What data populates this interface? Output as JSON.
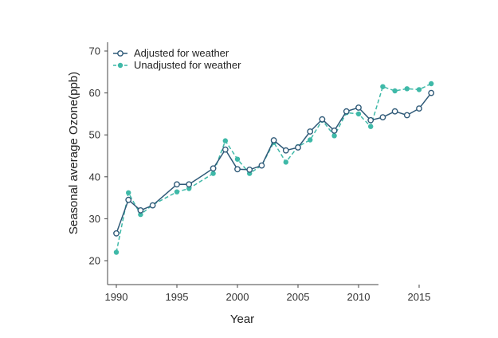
{
  "chart_data": {
    "type": "line",
    "title": "",
    "xlabel": "Year",
    "ylabel": "Seasonal average Ozone(ppb)",
    "xlim": [
      1990,
      2016
    ],
    "ylim": [
      17,
      71
    ],
    "x_ticks": [
      1990,
      1995,
      2000,
      2005,
      2010,
      2015
    ],
    "y_ticks": [
      20,
      30,
      40,
      50,
      60,
      70
    ],
    "grid": false,
    "legend_position": "top-left",
    "series": [
      {
        "name": "Adjusted for weather",
        "color": "#2f5a78",
        "style": "solid",
        "marker": "hollow-circle",
        "points": [
          [
            1990,
            26.5
          ],
          [
            1991,
            34.5
          ],
          [
            1992,
            32
          ],
          [
            1993,
            33.2
          ],
          [
            1995,
            38.2
          ],
          [
            1996,
            38.2
          ],
          [
            1998,
            42
          ],
          [
            1999,
            46.5
          ],
          [
            2000,
            41.8
          ],
          [
            2001,
            41.7
          ],
          [
            2002,
            42.7
          ],
          [
            2003,
            48.7
          ],
          [
            2004,
            46.3
          ],
          [
            2005,
            47
          ],
          [
            2006,
            50.8
          ],
          [
            2007,
            53.7
          ],
          [
            2008,
            51
          ],
          [
            2009,
            55.6
          ],
          [
            2010,
            56.5
          ],
          [
            2011,
            53.5
          ],
          [
            2012,
            54.2
          ],
          [
            2013,
            55.6
          ],
          [
            2014,
            54.7
          ],
          [
            2015,
            56.3
          ],
          [
            2016,
            60
          ]
        ]
      },
      {
        "name": "Unadjusted for weather",
        "color": "#3fb9a8",
        "style": "dashed",
        "marker": "filled-circle",
        "points": [
          [
            1990,
            22
          ],
          [
            1991,
            36.2
          ],
          [
            1992,
            31
          ],
          [
            1993,
            33.3
          ],
          [
            1995,
            36.4
          ],
          [
            1996,
            37.2
          ],
          [
            1998,
            40.8
          ],
          [
            1999,
            48.6
          ],
          [
            2000,
            44.2
          ],
          [
            2001,
            40.8
          ],
          [
            2002,
            42.7
          ],
          [
            2003,
            48.2
          ],
          [
            2004,
            43.5
          ],
          [
            2005,
            47.2
          ],
          [
            2006,
            48.8
          ],
          [
            2007,
            53.5
          ],
          [
            2008,
            49.8
          ],
          [
            2009,
            55.3
          ],
          [
            2010,
            55
          ],
          [
            2011,
            52
          ],
          [
            2012,
            61.5
          ],
          [
            2013,
            60.5
          ],
          [
            2014,
            61
          ],
          [
            2015,
            60.8
          ],
          [
            2016,
            62.2
          ]
        ]
      }
    ]
  }
}
